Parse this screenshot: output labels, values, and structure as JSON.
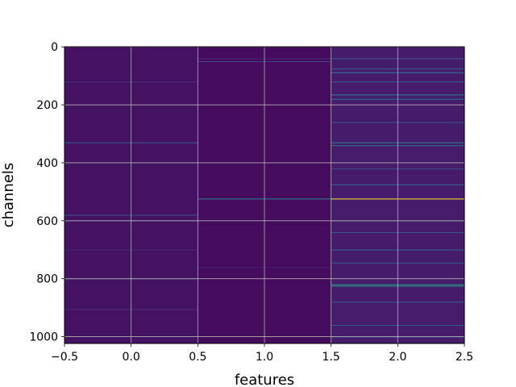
{
  "chart_data": {
    "type": "heatmap",
    "title": "",
    "xlabel": "features",
    "ylabel": "channels",
    "xlim": [
      -0.5,
      2.5
    ],
    "ylim": [
      1023.5,
      -0.5
    ],
    "y_inverted": true,
    "grid": true,
    "legend": "none",
    "colormap": "viridis",
    "x_ticks": [
      -0.5,
      0.0,
      0.5,
      1.0,
      1.5,
      2.0,
      2.5
    ],
    "x_tick_labels": [
      "−0.5",
      "0.0",
      "0.5",
      "1.0",
      "1.5",
      "2.0",
      "2.5"
    ],
    "y_ticks": [
      0,
      200,
      400,
      600,
      800,
      1000
    ],
    "y_tick_labels": [
      "0",
      "200",
      "400",
      "600",
      "800",
      "1000"
    ],
    "columns": [
      {
        "feature": 0,
        "baseline": 0.05,
        "bright_rows": [
          [
            330,
            0.32
          ],
          [
            580,
            0.25
          ],
          [
            800,
            0.2
          ],
          [
            120,
            0.14
          ],
          [
            600,
            0.16
          ],
          [
            700,
            0.13
          ],
          [
            905,
            0.14
          ]
        ]
      },
      {
        "feature": 1,
        "baseline": 0.03,
        "bright_rows": [
          [
            524,
            0.45
          ],
          [
            50,
            0.22
          ],
          [
            40,
            0.12
          ],
          [
            760,
            0.1
          ]
        ]
      },
      {
        "feature": 2,
        "baseline": 0.08,
        "bright_rows": [
          [
            524,
            1.0
          ],
          [
            88,
            0.45
          ],
          [
            165,
            0.45
          ],
          [
            180,
            0.4
          ],
          [
            820,
            0.6
          ],
          [
            825,
            0.5
          ],
          [
            330,
            0.45
          ],
          [
            340,
            0.4
          ],
          [
            475,
            0.38
          ],
          [
            1000,
            0.4
          ],
          [
            960,
            0.3
          ],
          [
            40,
            0.3
          ],
          [
            75,
            0.3
          ],
          [
            120,
            0.3
          ],
          [
            600,
            0.3
          ],
          [
            700,
            0.35
          ],
          [
            745,
            0.3
          ],
          [
            880,
            0.3
          ],
          [
            260,
            0.28
          ],
          [
            420,
            0.26
          ],
          [
            640,
            0.28
          ]
        ]
      }
    ]
  }
}
